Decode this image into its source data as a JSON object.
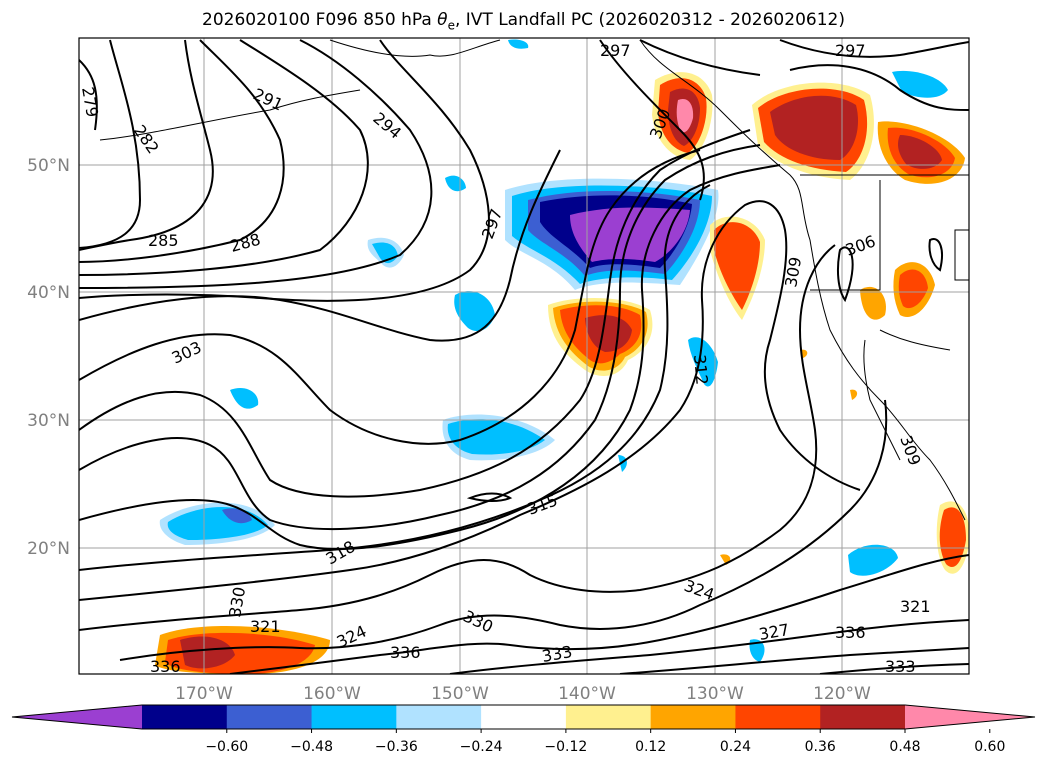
{
  "title": {
    "prefix": "2026020100 F096 850 hPa ",
    "theta_symbol": "θ",
    "theta_sub": "e",
    "suffix": ", IVT Landfall PC (2026020312 - 2026020612)"
  },
  "axes": {
    "lat_labels": [
      "50°N",
      "40°N",
      "30°N",
      "20°N"
    ],
    "lon_labels": [
      "170°W",
      "160°W",
      "150°W",
      "140°W",
      "130°W",
      "120°W"
    ]
  },
  "colorbar": {
    "ticks": [
      "−0.60",
      "−0.48",
      "−0.36",
      "−0.24",
      "−0.12",
      "0.12",
      "0.24",
      "0.36",
      "0.48",
      "0.60"
    ],
    "colors": [
      "#9b3fd1",
      "#00008b",
      "#3c5fd2",
      "#00bfff",
      "#b0e2ff",
      "#ffffff",
      "#fff08f",
      "#ffa500",
      "#ff4500",
      "#b22222",
      "#ff88aa"
    ]
  },
  "contour_labels": [
    "279",
    "282",
    "285",
    "288",
    "291",
    "294",
    "297",
    "300",
    "303",
    "306",
    "309",
    "312",
    "315",
    "318",
    "321",
    "324",
    "327",
    "330",
    "333",
    "336"
  ]
}
